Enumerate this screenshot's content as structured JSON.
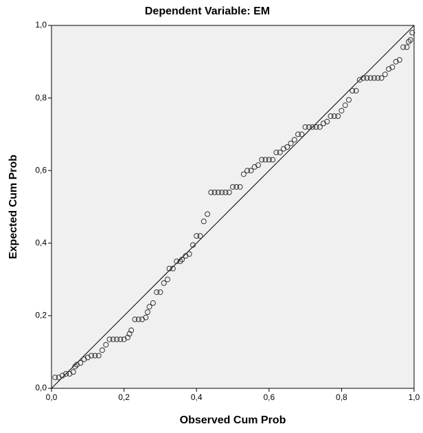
{
  "chart_data": {
    "type": "scatter",
    "title": "Dependent Variable: EM",
    "x_label": "Observed Cum Prob",
    "y_label": "Expected Cum Prob",
    "color": "#333333",
    "xlim": [
      0,
      1
    ],
    "ylim": [
      0,
      1
    ],
    "xticks": [
      {
        "value": 0,
        "label": "0,0"
      },
      {
        "value": 0.2,
        "label": "0,2"
      },
      {
        "value": 0.4,
        "label": "0,4"
      },
      {
        "value": 0.6,
        "label": "0,6"
      },
      {
        "value": 0.8,
        "label": "0,8"
      },
      {
        "value": 1,
        "label": "1,0"
      }
    ],
    "yticks": [
      {
        "value": 0,
        "label": "0,0"
      },
      {
        "value": 0.2,
        "label": "0,2"
      },
      {
        "value": 0.4,
        "label": "0,4"
      },
      {
        "value": 0.6,
        "label": "0,6"
      },
      {
        "value": 0.8,
        "label": "0,8"
      },
      {
        "value": 1,
        "label": "1,0"
      }
    ],
    "x": [
      0.01,
      0.02,
      0.03,
      0.04,
      0.05,
      0.06,
      0.065,
      0.07,
      0.08,
      0.09,
      0.1,
      0.11,
      0.12,
      0.13,
      0.14,
      0.15,
      0.16,
      0.17,
      0.18,
      0.19,
      0.2,
      0.21,
      0.215,
      0.22,
      0.23,
      0.24,
      0.25,
      0.26,
      0.265,
      0.27,
      0.28,
      0.29,
      0.3,
      0.31,
      0.32,
      0.325,
      0.335,
      0.345,
      0.355,
      0.36,
      0.37,
      0.38,
      0.39,
      0.4,
      0.41,
      0.42,
      0.43,
      0.44,
      0.45,
      0.46,
      0.47,
      0.48,
      0.49,
      0.5,
      0.51,
      0.52,
      0.53,
      0.54,
      0.55,
      0.56,
      0.57,
      0.58,
      0.59,
      0.6,
      0.61,
      0.62,
      0.63,
      0.64,
      0.65,
      0.66,
      0.67,
      0.68,
      0.69,
      0.7,
      0.71,
      0.72,
      0.73,
      0.74,
      0.75,
      0.76,
      0.77,
      0.78,
      0.79,
      0.8,
      0.81,
      0.82,
      0.83,
      0.84,
      0.85,
      0.86,
      0.87,
      0.88,
      0.89,
      0.9,
      0.91,
      0.92,
      0.93,
      0.94,
      0.95,
      0.96,
      0.97,
      0.98,
      0.985,
      0.99,
      0.995
    ],
    "values": [
      0.03,
      0.03,
      0.035,
      0.04,
      0.04,
      0.045,
      0.06,
      0.065,
      0.07,
      0.08,
      0.085,
      0.09,
      0.09,
      0.09,
      0.105,
      0.12,
      0.135,
      0.135,
      0.135,
      0.135,
      0.135,
      0.14,
      0.15,
      0.16,
      0.19,
      0.19,
      0.19,
      0.195,
      0.21,
      0.225,
      0.235,
      0.265,
      0.265,
      0.29,
      0.3,
      0.33,
      0.33,
      0.35,
      0.35,
      0.355,
      0.365,
      0.37,
      0.395,
      0.42,
      0.42,
      0.46,
      0.48,
      0.54,
      0.54,
      0.54,
      0.54,
      0.54,
      0.54,
      0.555,
      0.555,
      0.555,
      0.59,
      0.6,
      0.6,
      0.61,
      0.615,
      0.63,
      0.63,
      0.63,
      0.63,
      0.65,
      0.65,
      0.66,
      0.665,
      0.675,
      0.685,
      0.7,
      0.7,
      0.72,
      0.72,
      0.72,
      0.72,
      0.72,
      0.73,
      0.735,
      0.75,
      0.75,
      0.75,
      0.765,
      0.78,
      0.795,
      0.82,
      0.82,
      0.85,
      0.855,
      0.855,
      0.855,
      0.855,
      0.855,
      0.855,
      0.865,
      0.88,
      0.885,
      0.9,
      0.905,
      0.94,
      0.94,
      0.955,
      0.96,
      0.98
    ]
  }
}
